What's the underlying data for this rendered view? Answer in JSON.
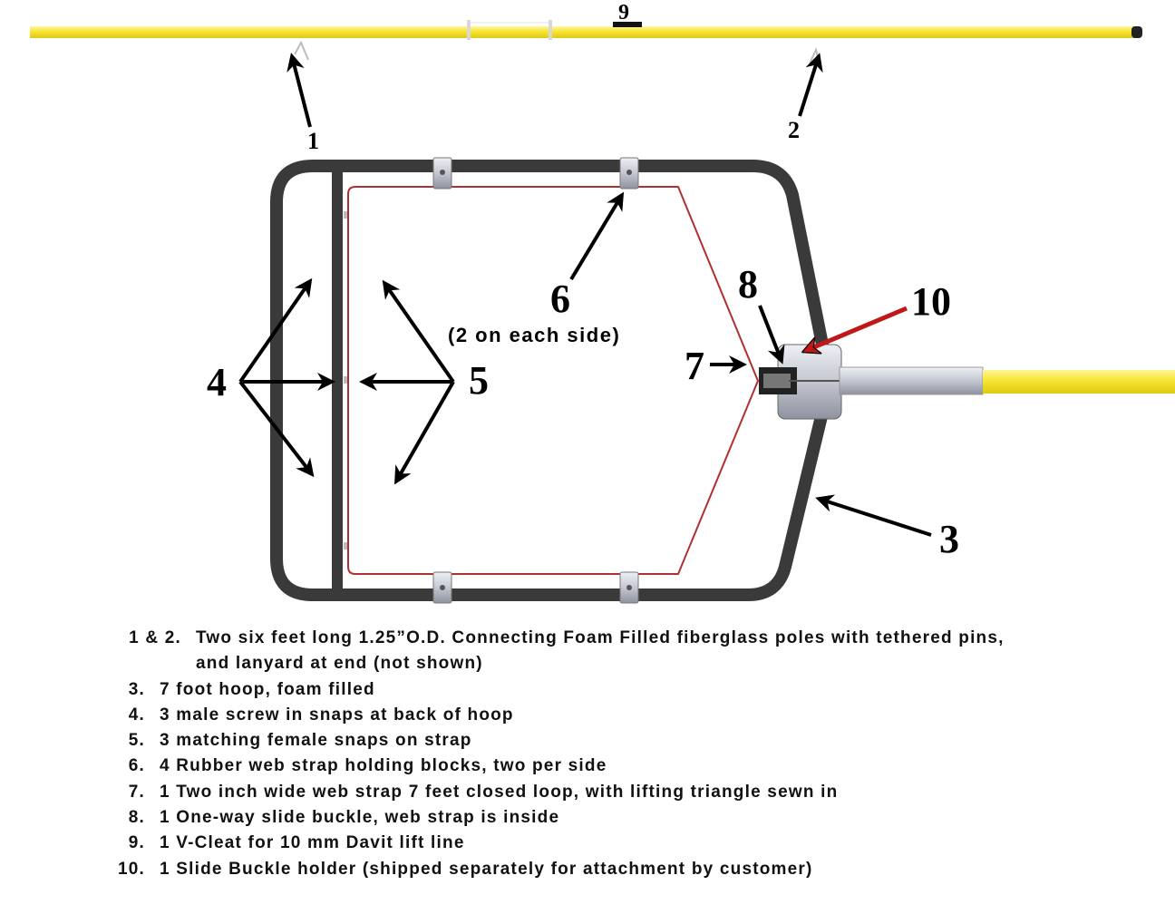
{
  "callouts": {
    "c1": "1",
    "c2": "2",
    "c3": "3",
    "c4": "4",
    "c5": "5",
    "c6": "6",
    "c6_sub": "(2 on each side)",
    "c7": "7",
    "c8": "8",
    "c9": "9",
    "c10": "10"
  },
  "legend": [
    {
      "num": "1 & 2.",
      "text": "Two six feet long 1.25”O.D. Connecting Foam Filled fiberglass poles with tethered pins,",
      "cont": "and lanyard at end (not shown)"
    },
    {
      "num": "3.",
      "text": "7 foot hoop, foam filled"
    },
    {
      "num": "4.",
      "text": "3 male screw in snaps at back of hoop"
    },
    {
      "num": "5.",
      "text": "3 matching female snaps on strap"
    },
    {
      "num": "6.",
      "text": "4 Rubber web strap holding blocks, two per side"
    },
    {
      "num": "7.",
      "text": "1 Two inch wide web strap 7 feet closed loop, with lifting triangle sewn in"
    },
    {
      "num": "8.",
      "text": "1 One-way slide buckle, web strap is inside"
    },
    {
      "num": "9.",
      "text": "1 V-Cleat for 10 mm Davit lift line"
    },
    {
      "num": "10.",
      "text": "1 Slide Buckle holder (shipped separately for attachment by customer)"
    }
  ],
  "colors": {
    "pole_yellow": "#f5e632",
    "hoop_dark": "#3a3a3a",
    "strap_red": "#b03030",
    "arrow_red": "#c01818",
    "metal_gray": "#c9cbd3"
  }
}
